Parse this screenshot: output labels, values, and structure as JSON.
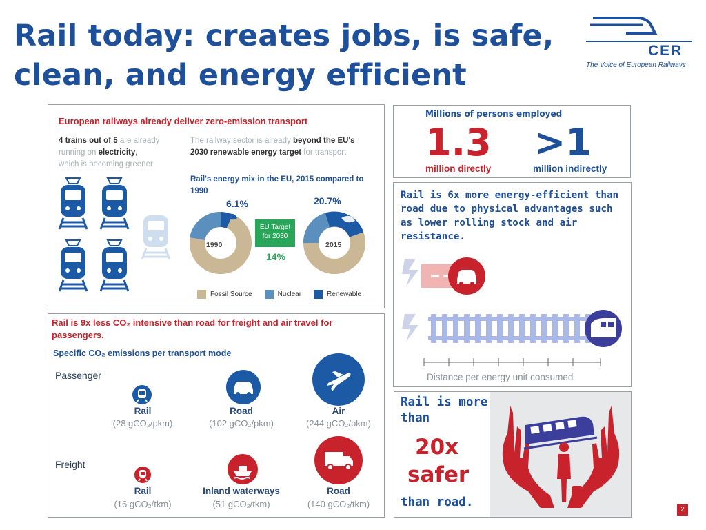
{
  "slide": {
    "title_line1": "Rail today: creates jobs, is safe,",
    "title_line2": "clean, and energy efficient",
    "page_number": "2"
  },
  "logo": {
    "name": "CER",
    "tagline": "The Voice of European Railways"
  },
  "zero_emission": {
    "heading": "European railways already deliver zero-emission transport",
    "trains_text_1a": "4 trains out of 5",
    "trains_text_1b": "are already",
    "trains_text_2a": "running on",
    "trains_text_2b": "electricity",
    "trains_text_3": "which is becoming greener",
    "renewable_text_1a": "The railway sector is already",
    "renewable_text_1b": "beyond the EU's",
    "renewable_text_2a": "2030 renewable energy target",
    "renewable_text_2b": "for transport",
    "mix_title_1": "Rail's energy mix in the EU, 2015 compared to",
    "mix_title_2": "1990",
    "donut_1990_label": "1990",
    "donut_1990_renewable": "6.1%",
    "donut_2015_label": "2015",
    "donut_2015_renewable": "20.7%",
    "eu_target_label_1": "EU Target",
    "eu_target_label_2": "for 2030",
    "eu_target_value": "14%",
    "legend": [
      "Fossil Source",
      "Nuclear",
      "Renewable"
    ],
    "colors": {
      "fossil": "#c9b796",
      "nuclear": "#5b8fbe",
      "renewable": "#1d5aa6",
      "target_green": "#2aa65a"
    }
  },
  "employment": {
    "heading": "Millions of persons employed",
    "direct_value": "1.3",
    "direct_label": "million directly",
    "indirect_value": ">1",
    "indirect_label": "million indirectly"
  },
  "efficiency": {
    "text_line1": "Rail is 6x more energy-efficient than",
    "text_line2": "road due to physical advantages such",
    "text_line3": "as lower rolling stock and air",
    "text_line4": "resistance.",
    "axis_label": "Distance per energy unit consumed"
  },
  "emissions": {
    "heading_1": "Rail is 9x less CO₂ intensive than road for freight and air travel for",
    "heading_2": "passengers.",
    "subheading": "Specific CO₂ emissions per transport mode",
    "passenger_label": "Passenger",
    "freight_label": "Freight",
    "passenger": [
      {
        "mode": "Rail",
        "value": "(28 gCO₂/pkm)"
      },
      {
        "mode": "Road",
        "value": "(102 gCO₂/pkm)"
      },
      {
        "mode": "Air",
        "value": "(244 gCO₂/pkm)"
      }
    ],
    "freight": [
      {
        "mode": "Rail",
        "value": "(16 gCO₂/tkm)"
      },
      {
        "mode": "Inland waterways",
        "value": "(51 gCO₂/tkm)"
      },
      {
        "mode": "Road",
        "value": "(140 gCO₂/tkm)"
      }
    ]
  },
  "safety": {
    "line1": "Rail is more",
    "line2": "than",
    "big_1": "20x",
    "big_2": "safer",
    "line3": "than road."
  }
}
